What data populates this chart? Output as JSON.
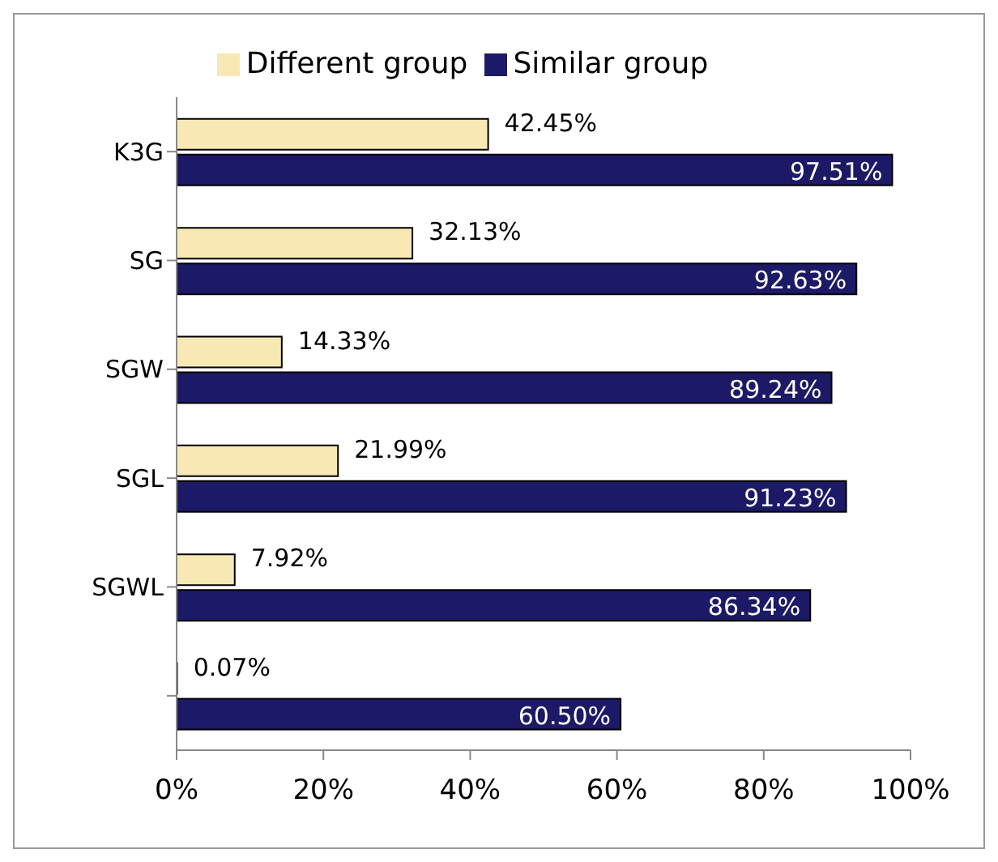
{
  "chart_data": {
    "type": "bar",
    "orientation": "horizontal",
    "categories": [
      "K3G",
      "SG",
      "SGW",
      "SGL",
      "SGWL",
      null
    ],
    "series": [
      {
        "name": "Different group",
        "color": "#f8e8b4",
        "values": [
          42.45,
          32.13,
          14.33,
          21.99,
          7.92,
          0.07
        ],
        "value_labels": [
          "42.45%",
          "32.13%",
          "14.33%",
          "21.99%",
          "7.92%",
          "0.07%"
        ]
      },
      {
        "name": "Similar group",
        "color": "#1c1a66",
        "values": [
          97.51,
          92.63,
          89.24,
          91.23,
          86.34,
          60.5
        ],
        "value_labels": [
          "97.51%",
          "92.63%",
          "89.24%",
          "91.23%",
          "86.34%",
          "60.50%"
        ]
      }
    ],
    "xlim": [
      0,
      100
    ],
    "xticks": [
      {
        "value": 0,
        "label": "0%"
      },
      {
        "value": 20,
        "label": "20%"
      },
      {
        "value": 40,
        "label": "40%"
      },
      {
        "value": 60,
        "label": "60%"
      },
      {
        "value": 80,
        "label": "80%"
      },
      {
        "value": 100,
        "label": "100%"
      }
    ],
    "grid": false,
    "legend": "top"
  }
}
